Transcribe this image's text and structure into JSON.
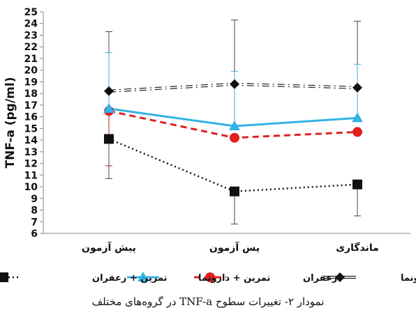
{
  "chart_data": {
    "type": "line",
    "ylabel": "TNF-a (pg/ml)",
    "categories": [
      "پیش آزمون",
      "پس آزمون",
      "ماندگاری"
    ],
    "ylim": [
      6,
      25
    ],
    "yticks": [
      6,
      7,
      8,
      9,
      10,
      11,
      12,
      13,
      14,
      15,
      16,
      17,
      18,
      19,
      20,
      21,
      22,
      23,
      24,
      25
    ],
    "grid": false,
    "legend_position": "bottom",
    "series": [
      {
        "name": "دارونما",
        "values": [
          18.2,
          18.8,
          18.5
        ],
        "error_high": [
          23.3,
          24.3,
          24.2
        ],
        "error_low": [
          null,
          null,
          null
        ],
        "color": "#111111",
        "marker": "diamond",
        "line_style": "dash-dot-double"
      },
      {
        "name": "زعفران",
        "values": [
          16.5,
          14.2,
          14.7
        ],
        "error_high": [
          null,
          null,
          null
        ],
        "error_low": [
          11.8,
          null,
          null
        ],
        "color": "#e02020",
        "marker": "circle",
        "line_style": "dashed"
      },
      {
        "name": "تمرین + دارونما",
        "values": [
          16.7,
          15.2,
          15.9
        ],
        "error_high": [
          21.5,
          19.9,
          20.5
        ],
        "error_low": [
          null,
          null,
          null
        ],
        "color": "#33b3e6",
        "marker": "triangle",
        "line_style": "solid"
      },
      {
        "name": "تمرین + زعفران",
        "values": [
          14.1,
          9.6,
          10.2
        ],
        "error_high": [
          null,
          null,
          null
        ],
        "error_low": [
          10.7,
          6.8,
          7.5
        ],
        "color": "#111111",
        "marker": "square",
        "line_style": "dotted"
      }
    ]
  },
  "caption": "نمودار ۲- تغییرات سطوح TNF-a در گروه‌های مختلف"
}
